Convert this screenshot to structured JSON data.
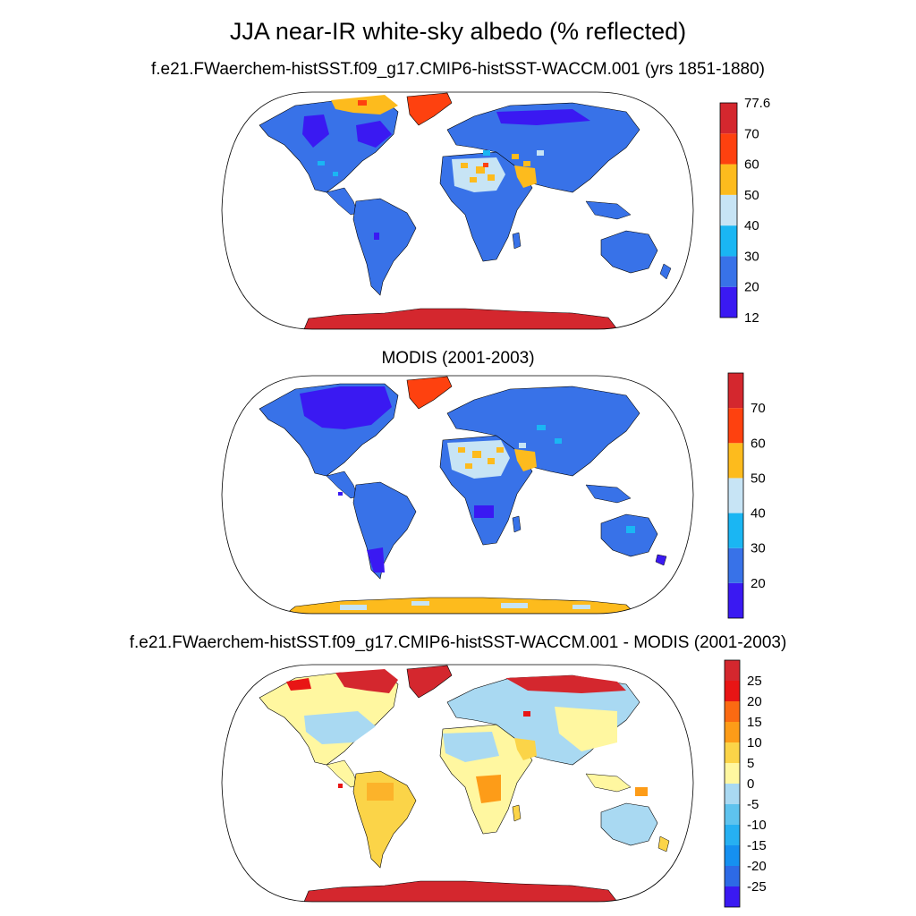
{
  "page": {
    "title": "JJA near-IR white-sky albedo (% reflected)"
  },
  "panels": [
    {
      "id": "model",
      "subtitle": "f.e21.FWaerchem-histSST.f09_g17.CMIP6-histSST-WACCM.001 (yrs 1851-1880)",
      "colorbar": {
        "colors": [
          "#3a19f2",
          "#3872e8",
          "#1ab6f3",
          "#c7e4f5",
          "#fdbb1d",
          "#fe410f",
          "#d4272e"
        ],
        "labels": [
          "12",
          "20",
          "30",
          "40",
          "50",
          "60",
          "70",
          "77.6"
        ]
      }
    },
    {
      "id": "modis",
      "subtitle": "MODIS (2001-2003)",
      "colorbar": {
        "colors": [
          "#3a19f2",
          "#3872e8",
          "#1ab6f3",
          "#c7e4f5",
          "#fdbb1d",
          "#fe410f",
          "#d4272e"
        ],
        "labels": [
          "20",
          "30",
          "40",
          "50",
          "60",
          "70"
        ]
      }
    },
    {
      "id": "difference",
      "subtitle": "f.e21.FWaerchem-histSST.f09_g17.CMIP6-histSST-WACCM.001 - MODIS (2001-2003)",
      "colorbar": {
        "colors": [
          "#3a19f2",
          "#2d6ae6",
          "#1590f0",
          "#26b0f2",
          "#5ec3ee",
          "#a9d9f2",
          "#fff7a0",
          "#fbd448",
          "#fd9c18",
          "#fb6a12",
          "#e81515",
          "#d4272e"
        ],
        "labels": [
          "-25",
          "-20",
          "-15",
          "-10",
          "-5",
          "0",
          "5",
          "10",
          "15",
          "20",
          "25"
        ]
      }
    }
  ]
}
